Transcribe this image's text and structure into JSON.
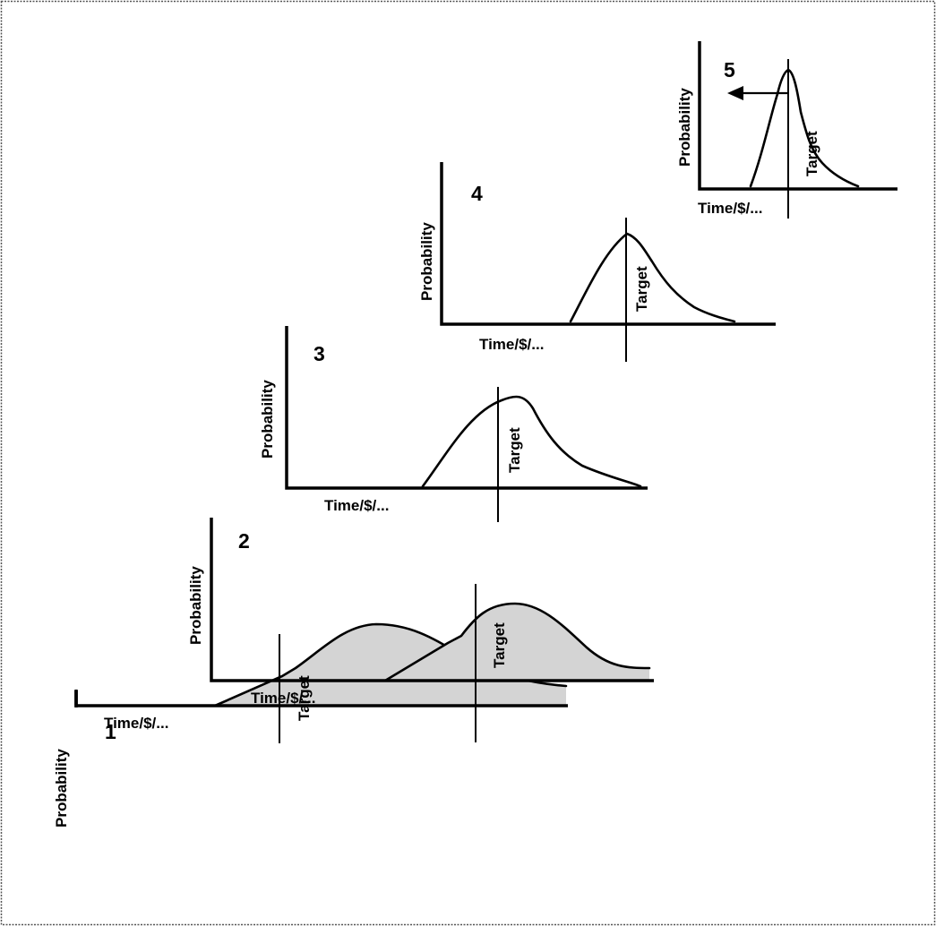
{
  "panels": [
    {
      "number": "1",
      "ylabel": "Probability",
      "xlabel": "Time/$/...",
      "target_label": "Target",
      "shaded": true
    },
    {
      "number": "2",
      "ylabel": "Probability",
      "xlabel": "Time/$/...",
      "target_label": "Target",
      "shaded": true
    },
    {
      "number": "3",
      "ylabel": "Probability",
      "xlabel": "Time/$/...",
      "target_label": "Target",
      "shaded": false
    },
    {
      "number": "4",
      "ylabel": "Probability",
      "xlabel": "Time/$/...",
      "target_label": "Target",
      "shaded": false
    },
    {
      "number": "5",
      "ylabel": "Probability",
      "xlabel": "Time/$/...",
      "target_label": "Target",
      "shaded": false,
      "arrow": "left"
    }
  ],
  "colors": {
    "line": "#000000",
    "shade": "#d4d4d4",
    "background": "#ffffff"
  }
}
